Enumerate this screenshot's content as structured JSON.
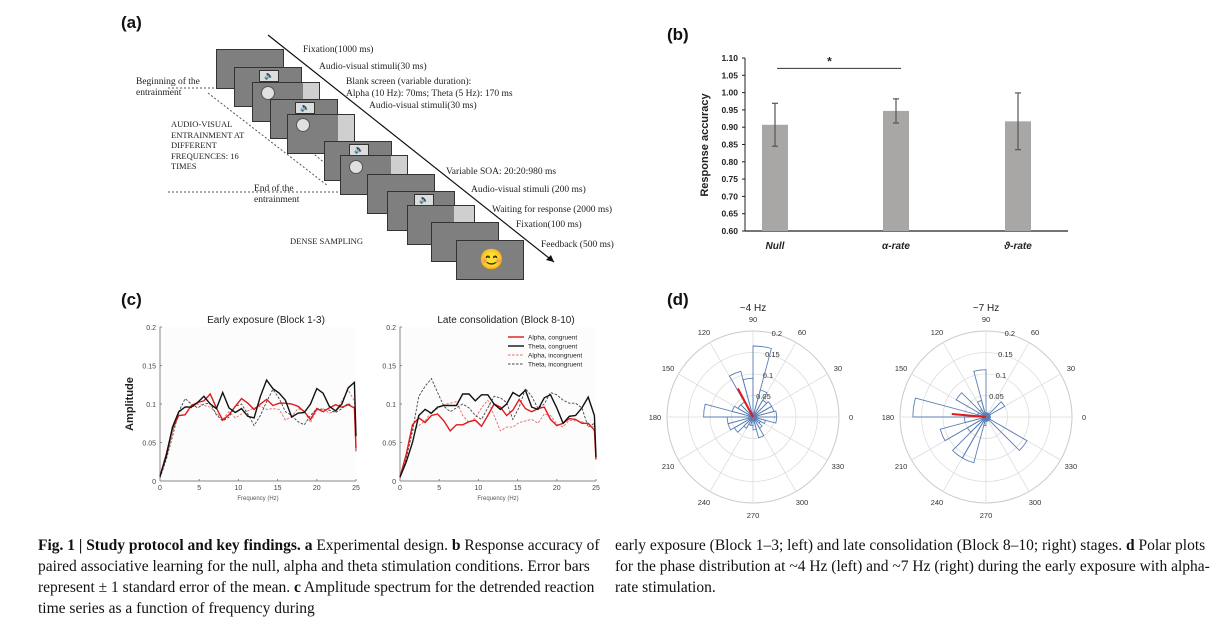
{
  "panels": {
    "a": {
      "label": "(a)",
      "steps": [
        "Fixation(1000 ms)",
        "Audio-visual stimuli(30 ms)",
        "Blank screen  (variable duration):",
        "Alpha (10 Hz): 70ms; Theta (5 Hz): 170 ms",
        "Audio-visual stimuli(30 ms)",
        "Variable SOA: 20:20:980 ms",
        "Audio-visual stimuli (200 ms)",
        "Waiting for response (2000 ms)",
        "Fixation(100 ms)",
        "Feedback (500 ms)"
      ],
      "left_notes": {
        "begin": [
          "Beginning of the",
          "entrainment"
        ],
        "entrain": [
          "AUDIO-VISUAL",
          "ENTRAINMENT AT",
          "DIFFERENT",
          "FREQUENCES: 16",
          "TIMES"
        ],
        "end": [
          "End of the",
          "entrainment"
        ],
        "dense": "DENSE SAMPLING"
      },
      "icons": {
        "speaker": "🔈",
        "feedback": "😊"
      }
    },
    "b": {
      "label": "(b)"
    },
    "c": {
      "label": "(c)"
    },
    "d": {
      "label": "(d)"
    }
  },
  "chart_data": [
    {
      "id": "b",
      "type": "bar",
      "title": "",
      "xlabel": "",
      "ylabel": "Response accuracy",
      "categories": [
        "Null",
        "α-rate",
        "ϑ-rate"
      ],
      "values": [
        0.907,
        0.947,
        0.917
      ],
      "errors": [
        0.062,
        0.035,
        0.082
      ],
      "ylim": [
        0.6,
        1.1
      ],
      "yticks": [
        "0.60",
        "0.65",
        "0.70",
        "0.75",
        "0.80",
        "0.85",
        "0.90",
        "0.95",
        "1.00",
        "1.05",
        "1.10"
      ],
      "bar_color": "#a9a7a5",
      "annotation": {
        "text": "*",
        "from": "Null",
        "to": "α-rate",
        "y": 1.07
      }
    },
    {
      "id": "c-left",
      "type": "line",
      "title": "Early exposure (Block 1-3)",
      "xlabel": "Frequency (Hz)",
      "ylabel": "Amplitude",
      "xlim": [
        0,
        25
      ],
      "ylim": [
        0,
        0.2
      ],
      "xticks": [
        "0",
        "5",
        "10",
        "15",
        "20",
        "25"
      ],
      "yticks": [
        "0",
        "0.05",
        "0.1",
        "0.15",
        "0.2"
      ],
      "x": [
        0,
        0.8,
        1.6,
        2.4,
        3.2,
        4,
        4.8,
        5.6,
        6.4,
        7.2,
        8,
        8.8,
        9.6,
        10.4,
        11.2,
        12,
        12.8,
        13.6,
        14.4,
        15.2,
        16,
        16.8,
        17.6,
        18.4,
        19.2,
        20,
        20.8,
        21.6,
        22.4,
        23.2,
        24,
        24.8,
        25
      ],
      "series": [
        {
          "name": "Alpha, congruent",
          "color": "#e0191b",
          "dash": false,
          "values": [
            0.006,
            0.035,
            0.068,
            0.085,
            0.086,
            0.098,
            0.102,
            0.104,
            0.113,
            0.095,
            0.079,
            0.086,
            0.097,
            0.107,
            0.101,
            0.093,
            0.1,
            0.106,
            0.098,
            0.101,
            0.101,
            0.1,
            0.097,
            0.09,
            0.08,
            0.094,
            0.09,
            0.095,
            0.099,
            0.096,
            0.099,
            0.095,
            0.042
          ]
        },
        {
          "name": "Theta, congruent",
          "color": "#111111",
          "dash": false,
          "values": [
            0.006,
            0.033,
            0.07,
            0.09,
            0.096,
            0.096,
            0.102,
            0.11,
            0.1,
            0.094,
            0.115,
            0.095,
            0.089,
            0.094,
            0.084,
            0.082,
            0.11,
            0.131,
            0.12,
            0.114,
            0.105,
            0.083,
            0.088,
            0.089,
            0.1,
            0.12,
            0.114,
            0.097,
            0.091,
            0.1,
            0.121,
            0.128,
            0.058
          ]
        },
        {
          "name": "Alpha, incongruent",
          "color": "#e56b6b",
          "dash": true,
          "values": [
            0.006,
            0.03,
            0.064,
            0.088,
            0.097,
            0.095,
            0.1,
            0.098,
            0.096,
            0.088,
            0.08,
            0.09,
            0.082,
            0.087,
            0.091,
            0.095,
            0.097,
            0.093,
            0.094,
            0.093,
            0.079,
            0.084,
            0.094,
            0.091,
            0.076,
            0.092,
            0.094,
            0.088,
            0.091,
            0.104,
            0.118,
            0.104,
            0.04
          ]
        },
        {
          "name": "Theta, incongruent",
          "color": "#444444",
          "dash": true,
          "values": [
            0.004,
            0.028,
            0.058,
            0.09,
            0.107,
            0.1,
            0.095,
            0.1,
            0.101,
            0.086,
            0.078,
            0.083,
            0.097,
            0.1,
            0.087,
            0.072,
            0.085,
            0.103,
            0.119,
            0.107,
            0.09,
            0.085,
            0.077,
            0.073,
            0.085,
            0.094,
            0.093,
            0.092,
            0.089,
            0.094,
            0.101,
            0.094,
            0.037
          ]
        }
      ]
    },
    {
      "id": "c-right",
      "type": "line",
      "title": "Late consolidation (Block 8-10)",
      "xlabel": "Frequency (Hz)",
      "ylabel": "",
      "xlim": [
        0,
        25
      ],
      "ylim": [
        0,
        0.2
      ],
      "xticks": [
        "0",
        "5",
        "10",
        "15",
        "20",
        "25"
      ],
      "yticks": [
        "0",
        "0.05",
        "0.1",
        "0.15",
        "0.2"
      ],
      "legend": {
        "placement": "top-right",
        "entries": [
          "Alpha, congruent",
          "Theta, congruent",
          "Alpha, incongruent",
          "Theta, incongruent"
        ]
      },
      "x": [
        0,
        0.8,
        1.6,
        2.4,
        3.2,
        4,
        4.8,
        5.6,
        6.4,
        7.2,
        8,
        8.8,
        9.6,
        10.4,
        11.2,
        12,
        12.8,
        13.6,
        14.4,
        15.2,
        16,
        16.8,
        17.6,
        18.4,
        19.2,
        20,
        20.8,
        21.6,
        22.4,
        23.2,
        24,
        24.8,
        25
      ],
      "series": [
        {
          "name": "Alpha, congruent",
          "color": "#e0191b",
          "dash": false,
          "values": [
            0.005,
            0.035,
            0.073,
            0.082,
            0.076,
            0.085,
            0.087,
            0.078,
            0.065,
            0.073,
            0.073,
            0.077,
            0.079,
            0.071,
            0.085,
            0.1,
            0.096,
            0.085,
            0.092,
            0.106,
            0.094,
            0.09,
            0.094,
            0.096,
            0.08,
            0.072,
            0.075,
            0.081,
            0.08,
            0.075,
            0.075,
            0.066,
            0.028
          ]
        },
        {
          "name": "Theta, congruent",
          "color": "#111111",
          "dash": false,
          "values": [
            0.005,
            0.025,
            0.05,
            0.085,
            0.093,
            0.088,
            0.096,
            0.098,
            0.098,
            0.098,
            0.113,
            0.113,
            0.104,
            0.112,
            0.112,
            0.1,
            0.093,
            0.1,
            0.115,
            0.11,
            0.118,
            0.096,
            0.093,
            0.108,
            0.112,
            0.095,
            0.075,
            0.084,
            0.085,
            0.095,
            0.109,
            0.085,
            0.031
          ]
        },
        {
          "name": "Alpha, incongruent",
          "color": "#e56b6b",
          "dash": true,
          "values": [
            0.005,
            0.03,
            0.065,
            0.072,
            0.078,
            0.09,
            0.094,
            0.099,
            0.101,
            0.103,
            0.085,
            0.076,
            0.082,
            0.095,
            0.105,
            0.085,
            0.065,
            0.07,
            0.07,
            0.076,
            0.078,
            0.08,
            0.075,
            0.087,
            0.085,
            0.074,
            0.07,
            0.079,
            0.078,
            0.077,
            0.074,
            0.07,
            0.03
          ]
        },
        {
          "name": "Theta, incongruent",
          "color": "#444444",
          "dash": true,
          "values": [
            0.005,
            0.03,
            0.065,
            0.11,
            0.123,
            0.133,
            0.115,
            0.097,
            0.09,
            0.095,
            0.1,
            0.095,
            0.085,
            0.08,
            0.095,
            0.11,
            0.108,
            0.102,
            0.08,
            0.096,
            0.12,
            0.11,
            0.094,
            0.1,
            0.115,
            0.112,
            0.105,
            0.101,
            0.101,
            0.095,
            0.07,
            0.075,
            0.03
          ]
        }
      ]
    },
    {
      "id": "d-left",
      "type": "polar-histogram",
      "title": "~4 Hz",
      "angle_ticks": [
        "0",
        "30",
        "60",
        "90",
        "120",
        "150",
        "180",
        "210",
        "240",
        "270",
        "300",
        "330"
      ],
      "radial_ticks": [
        "0.05",
        "0.1",
        "0.15",
        "0.2"
      ],
      "rlim": [
        0,
        0.2
      ],
      "bin_width_deg": 15,
      "bins": [
        {
          "angle": 7.5,
          "value": 0.055
        },
        {
          "angle": 22.5,
          "value": 0.05
        },
        {
          "angle": 37.5,
          "value": 0.05
        },
        {
          "angle": 52.5,
          "value": 0.045
        },
        {
          "angle": 67.5,
          "value": 0.065
        },
        {
          "angle": 82.5,
          "value": 0.165
        },
        {
          "angle": 97.5,
          "value": 0.09
        },
        {
          "angle": 112.5,
          "value": 0.11
        },
        {
          "angle": 127.5,
          "value": 0.04
        },
        {
          "angle": 142.5,
          "value": 0.04
        },
        {
          "angle": 157.5,
          "value": 0.05
        },
        {
          "angle": 172.5,
          "value": 0.115
        },
        {
          "angle": 187.5,
          "value": 0.06
        },
        {
          "angle": 202.5,
          "value": 0.06
        },
        {
          "angle": 217.5,
          "value": 0.05
        },
        {
          "angle": 232.5,
          "value": 0.03
        },
        {
          "angle": 247.5,
          "value": 0.02
        },
        {
          "angle": 262.5,
          "value": 0.02
        },
        {
          "angle": 277.5,
          "value": 0.03
        },
        {
          "angle": 292.5,
          "value": 0.05
        },
        {
          "angle": 307.5,
          "value": 0.03
        },
        {
          "angle": 322.5,
          "value": 0.02
        },
        {
          "angle": 337.5,
          "value": 0.03
        },
        {
          "angle": 352.5,
          "value": 0.055
        }
      ],
      "mean_vector": {
        "angle": 118,
        "length": 0.075,
        "color": "#e0191b"
      },
      "bar_color": "#5b7fb3"
    },
    {
      "id": "d-right",
      "type": "polar-histogram",
      "title": "~7 Hz",
      "angle_ticks": [
        "0",
        "30",
        "60",
        "90",
        "120",
        "150",
        "180",
        "210",
        "240",
        "270",
        "300",
        "330"
      ],
      "radial_ticks": [
        "0.05",
        "0.1",
        "0.15",
        "0.2"
      ],
      "rlim": [
        0,
        0.2
      ],
      "bin_width_deg": 15,
      "bins": [
        {
          "angle": 7.5,
          "value": 0.01
        },
        {
          "angle": 22.5,
          "value": 0.01
        },
        {
          "angle": 37.5,
          "value": 0.05
        },
        {
          "angle": 52.5,
          "value": 0.01
        },
        {
          "angle": 67.5,
          "value": 0.01
        },
        {
          "angle": 82.5,
          "value": 0.01
        },
        {
          "angle": 97.5,
          "value": 0.11
        },
        {
          "angle": 112.5,
          "value": 0.04
        },
        {
          "angle": 127.5,
          "value": 0.02
        },
        {
          "angle": 142.5,
          "value": 0.08
        },
        {
          "angle": 157.5,
          "value": 0.02
        },
        {
          "angle": 172.5,
          "value": 0.17
        },
        {
          "angle": 187.5,
          "value": 0.05
        },
        {
          "angle": 202.5,
          "value": 0.11
        },
        {
          "angle": 217.5,
          "value": 0.05
        },
        {
          "angle": 232.5,
          "value": 0.11
        },
        {
          "angle": 247.5,
          "value": 0.11
        },
        {
          "angle": 262.5,
          "value": 0.02
        },
        {
          "angle": 277.5,
          "value": 0.01
        },
        {
          "angle": 292.5,
          "value": 0.01
        },
        {
          "angle": 307.5,
          "value": 0.01
        },
        {
          "angle": 322.5,
          "value": 0.11
        },
        {
          "angle": 337.5,
          "value": 0.01
        },
        {
          "angle": 352.5,
          "value": 0.01
        }
      ],
      "mean_vector": {
        "angle": 175,
        "length": 0.08,
        "color": "#e0191b"
      },
      "bar_color": "#5b7fb3"
    }
  ],
  "caption": {
    "left": {
      "fig_label": "Fig. 1 | Study protocol and key findings.",
      "parts": [
        {
          "bold": "a",
          "text": " Experimental design. "
        },
        {
          "bold": "b",
          "text": " Response accuracy of paired associative learning for the null, alpha and theta stimulation conditions. Error bars represent ± 1 standard error of the mean. "
        },
        {
          "bold": "c",
          "text": " Amplitude spectrum for the detrended reaction time series as a function of frequency during"
        }
      ]
    },
    "right": {
      "parts": [
        {
          "bold": "",
          "text": "early exposure (Block 1–3; left) and late consolidation (Block 8–10; right) stages. "
        },
        {
          "bold": "d",
          "text": " Polar plots for the phase distribution at ~4 Hz (left) and ~7 Hz (right) during the early exposure with alpha-rate stimulation."
        }
      ]
    }
  }
}
